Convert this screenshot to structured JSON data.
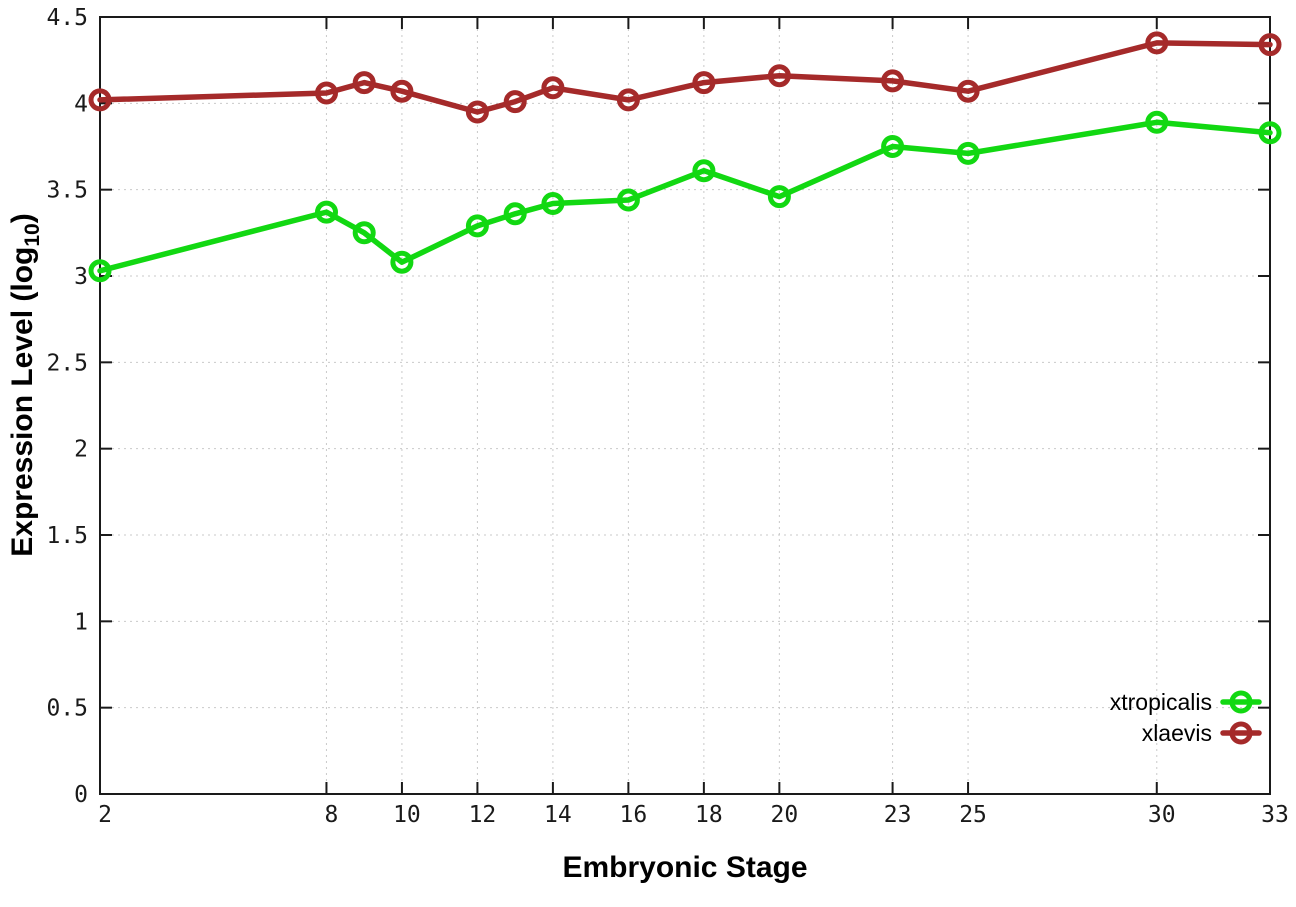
{
  "chart_data": {
    "type": "line",
    "title": "",
    "xlabel": "Embryonic Stage",
    "ylabel": "Expression Level (log10)",
    "ylabel_prefix": "Expression Level (log",
    "ylabel_sub": "10",
    "ylabel_suffix": ")",
    "x": [
      2,
      8,
      9,
      10,
      12,
      13,
      14,
      16,
      18,
      20,
      23,
      25,
      30,
      33
    ],
    "series": [
      {
        "name": "xtropicalis",
        "color": "#12d812",
        "values": [
          3.03,
          3.37,
          3.25,
          3.08,
          3.29,
          3.36,
          3.42,
          3.44,
          3.61,
          3.46,
          3.75,
          3.71,
          3.89,
          3.83
        ]
      },
      {
        "name": "xlaevis",
        "color": "#a52a2a",
        "values": [
          4.02,
          4.06,
          4.12,
          4.07,
          3.95,
          4.01,
          4.09,
          4.02,
          4.12,
          4.16,
          4.13,
          4.07,
          4.35,
          4.34
        ]
      }
    ],
    "xticks": [
      2,
      8,
      10,
      12,
      14,
      16,
      18,
      20,
      23,
      25,
      30,
      33
    ],
    "xtick_labels": [
      "2",
      "8",
      "10",
      "12",
      "14",
      "16",
      "18",
      "20",
      "23",
      "25",
      "30",
      "33"
    ],
    "ytick_values": [
      0,
      0.5,
      1,
      1.5,
      2,
      2.5,
      3,
      3.5,
      4,
      4.5
    ],
    "ytick_labels": [
      "0",
      "0.5",
      "1",
      "1.5",
      "2",
      "2.5",
      "3",
      "3.5",
      "4",
      "4.5"
    ],
    "xlim": [
      2,
      33
    ],
    "ylim": [
      0,
      4.5
    ],
    "grid": true,
    "legend_position": "bottom-right",
    "colors": {
      "background": "#ffffff",
      "axis": "#1a1a1a",
      "grid": "#c9c9c9",
      "text": "#000000"
    }
  }
}
